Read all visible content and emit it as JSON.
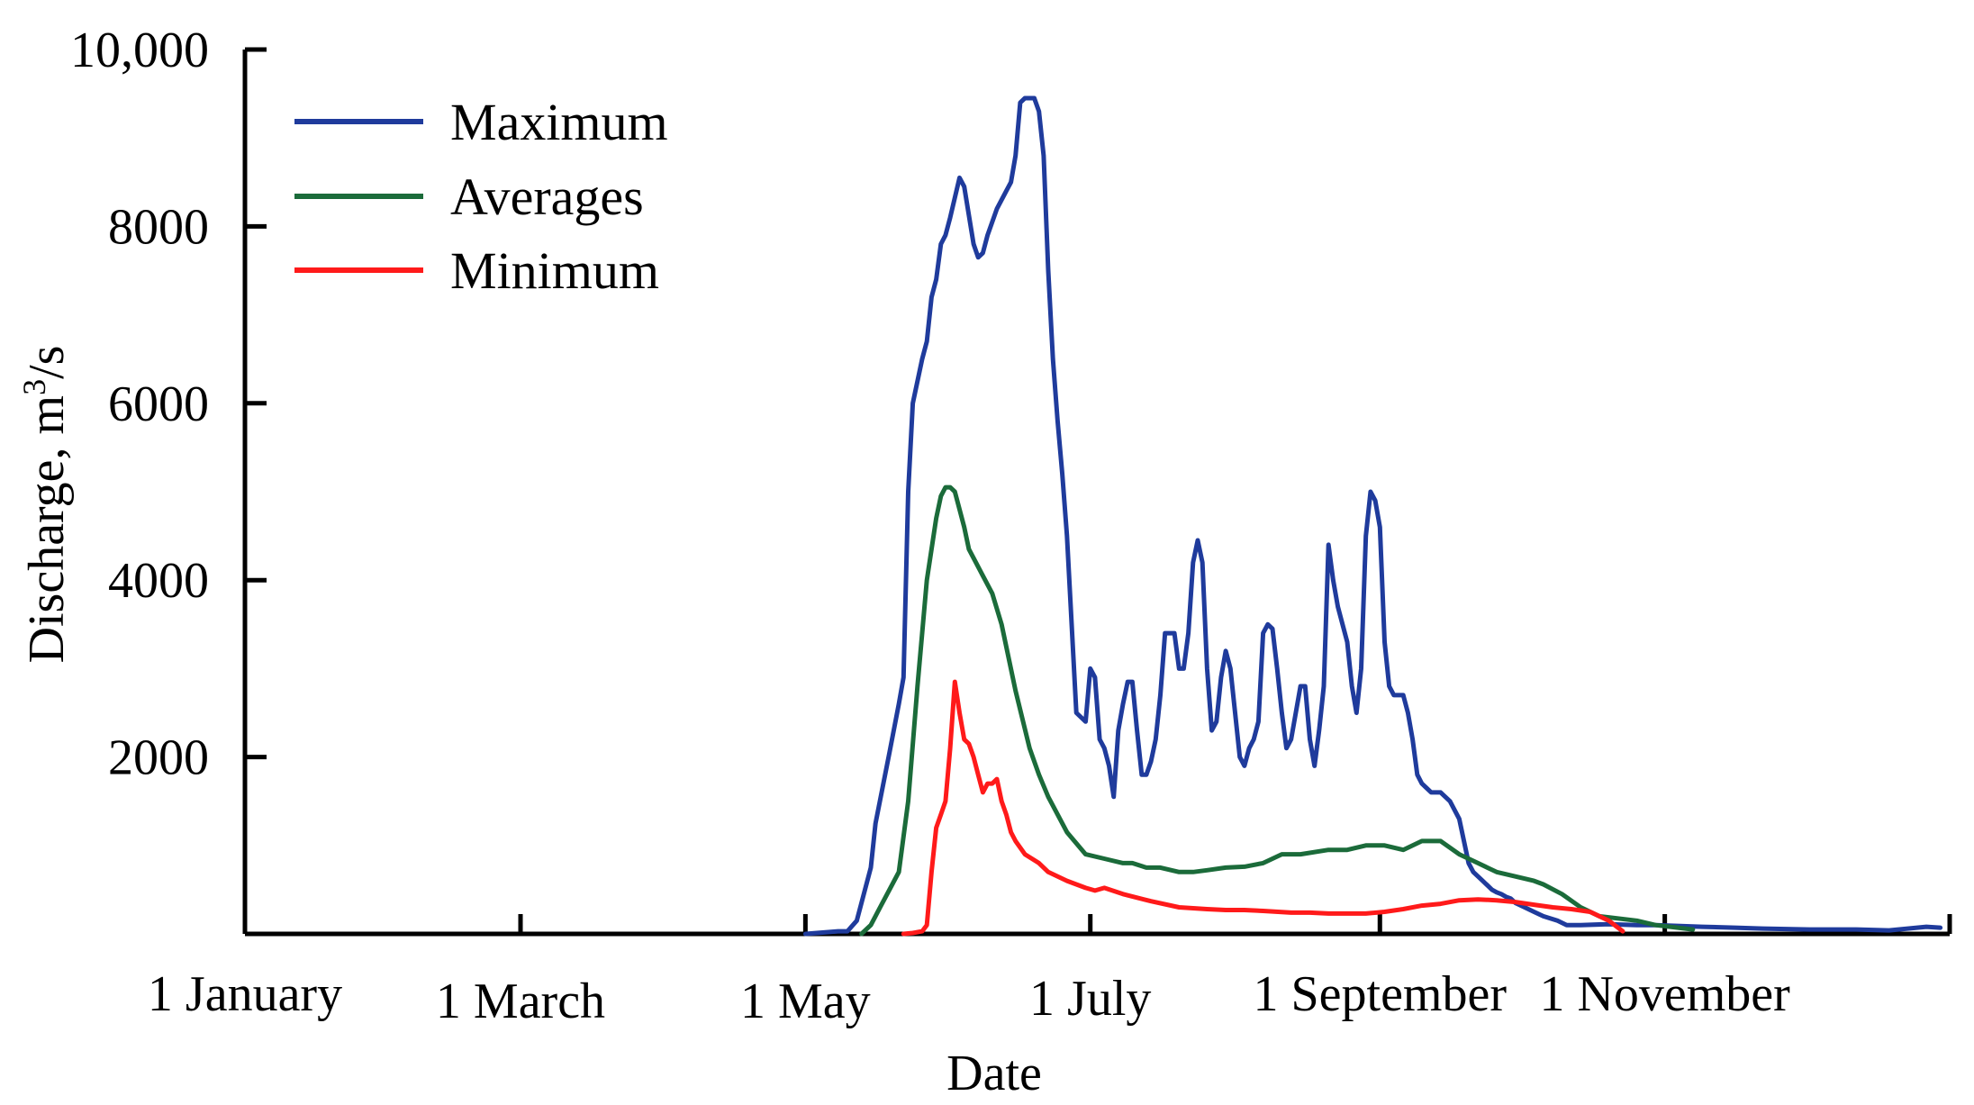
{
  "chart_data": {
    "type": "line",
    "title": "",
    "xlabel": "Date",
    "ylabel_prefix": "Discharge, m",
    "ylabel_sup": "3",
    "ylabel_suffix": "/s",
    "ylim": [
      0,
      10000
    ],
    "xlim": [
      0,
      365
    ],
    "y_ticks": [
      {
        "value": 10000,
        "label": "10,000"
      },
      {
        "value": 8000,
        "label": "8000"
      },
      {
        "value": 6000,
        "label": "6000"
      },
      {
        "value": 4000,
        "label": "4000"
      },
      {
        "value": 2000,
        "label": "2000"
      }
    ],
    "x_ticks": [
      {
        "day": 0,
        "label": "1 January"
      },
      {
        "day": 59,
        "label": "1 March"
      },
      {
        "day": 120,
        "label": "1 May"
      },
      {
        "day": 181,
        "label": "1 July"
      },
      {
        "day": 243,
        "label": "1 September"
      },
      {
        "day": 304,
        "label": "1 November"
      }
    ],
    "legend_position": "top-left",
    "series": [
      {
        "name": "Maximum",
        "color": "#1f3b9c",
        "x": [
          120,
          127,
          129,
          131,
          134,
          135,
          138,
          140,
          141,
          142,
          143,
          145,
          146,
          147,
          148,
          149,
          150,
          151,
          153,
          154,
          156,
          157,
          158,
          159,
          161,
          162,
          163,
          164,
          165,
          166,
          167,
          169,
          170,
          171,
          172,
          173,
          174,
          175,
          176,
          177,
          178,
          180,
          181,
          182,
          183,
          184,
          185,
          186,
          187,
          188,
          189,
          190,
          191,
          192,
          193,
          194,
          195,
          196,
          197,
          199,
          200,
          201,
          202,
          203,
          204,
          205,
          206,
          207,
          208,
          209,
          210,
          211,
          212,
          213,
          214,
          215,
          216,
          217,
          218,
          219,
          220,
          221,
          222,
          223,
          224,
          225,
          226,
          227,
          228,
          229,
          230,
          231,
          232,
          233,
          234,
          235,
          236,
          237,
          238,
          239,
          240,
          241,
          242,
          243,
          244,
          245,
          246,
          248,
          249,
          250,
          251,
          252,
          253,
          254,
          255,
          256,
          257,
          258,
          260,
          262,
          263,
          264,
          265,
          266,
          267,
          268,
          269,
          270,
          271,
          272,
          274,
          276,
          278,
          281,
          283,
          286,
          292,
          298,
          302,
          312,
          319,
          325,
          335,
          345,
          352,
          360,
          363
        ],
        "y": [
          0,
          30,
          30,
          150,
          750,
          1250,
          2050,
          2600,
          2900,
          5000,
          6000,
          6500,
          6700,
          7200,
          7400,
          7800,
          7900,
          8100,
          8550,
          8450,
          7800,
          7650,
          7700,
          7900,
          8200,
          8300,
          8400,
          8500,
          8800,
          9400,
          9450,
          9450,
          9300,
          8800,
          7500,
          6500,
          5800,
          5200,
          4500,
          3500,
          2500,
          2400,
          3000,
          2900,
          2200,
          2100,
          1900,
          1550,
          2300,
          2600,
          2850,
          2850,
          2300,
          1800,
          1800,
          1950,
          2200,
          2700,
          3400,
          3400,
          3000,
          3000,
          3400,
          4200,
          4450,
          4200,
          3000,
          2300,
          2400,
          2900,
          3200,
          3000,
          2500,
          2000,
          1900,
          2100,
          2200,
          2400,
          3400,
          3500,
          3450,
          3000,
          2500,
          2100,
          2200,
          2500,
          2800,
          2800,
          2200,
          1900,
          2300,
          2800,
          4400,
          4000,
          3700,
          3500,
          3300,
          2800,
          2500,
          3000,
          4500,
          5000,
          4900,
          4600,
          3300,
          2800,
          2700,
          2700,
          2500,
          2200,
          1800,
          1700,
          1650,
          1600,
          1600,
          1600,
          1550,
          1500,
          1300,
          800,
          700,
          650,
          600,
          550,
          500,
          470,
          450,
          420,
          400,
          350,
          300,
          250,
          200,
          150,
          100,
          100,
          110,
          100,
          100,
          80,
          70,
          60,
          50,
          50,
          40,
          80,
          70
        ],
        "y_prev": []
      },
      {
        "name": "Averages",
        "color": "#1b6b3a",
        "x": [
          132,
          134,
          136,
          138,
          140,
          142,
          144,
          146,
          148,
          149,
          150,
          151,
          152,
          153,
          154,
          155,
          156,
          158,
          160,
          162,
          165,
          168,
          170,
          172,
          174,
          176,
          180,
          184,
          188,
          190,
          193,
          196,
          200,
          203,
          206,
          210,
          214,
          218,
          222,
          226,
          232,
          236,
          240,
          244,
          248,
          252,
          256,
          260,
          264,
          268,
          272,
          276,
          278,
          282,
          286,
          290,
          298,
          302,
          310
        ],
        "y": [
          0,
          100,
          300,
          500,
          700,
          1500,
          2800,
          4000,
          4700,
          4950,
          5050,
          5050,
          5000,
          4800,
          4600,
          4350,
          4250,
          4050,
          3850,
          3500,
          2750,
          2100,
          1800,
          1550,
          1350,
          1150,
          900,
          850,
          800,
          800,
          750,
          750,
          700,
          700,
          720,
          750,
          760,
          800,
          900,
          900,
          950,
          950,
          1000,
          1000,
          950,
          1050,
          1050,
          900,
          800,
          700,
          650,
          600,
          560,
          450,
          300,
          200,
          150,
          100,
          50
        ],
        "y_prev": []
      },
      {
        "name": "Minimum",
        "color": "#ff1a1a",
        "x": [
          141,
          143,
          145,
          146,
          147,
          148,
          149,
          150,
          151,
          152,
          153,
          154,
          155,
          156,
          157,
          158,
          159,
          160,
          161,
          162,
          163,
          164,
          165,
          167,
          170,
          172,
          176,
          180,
          182,
          184,
          188,
          194,
          200,
          206,
          210,
          214,
          218,
          224,
          228,
          232,
          236,
          240,
          244,
          248,
          252,
          256,
          260,
          264,
          268,
          272,
          276,
          280,
          284,
          288,
          292,
          295
        ],
        "y": [
          0,
          10,
          30,
          100,
          700,
          1200,
          1350,
          1500,
          2100,
          2850,
          2500,
          2200,
          2150,
          2000,
          1800,
          1600,
          1700,
          1700,
          1750,
          1500,
          1350,
          1150,
          1050,
          900,
          800,
          700,
          600,
          520,
          490,
          520,
          450,
          370,
          300,
          280,
          270,
          270,
          260,
          240,
          240,
          230,
          230,
          230,
          250,
          280,
          320,
          340,
          380,
          390,
          380,
          360,
          330,
          300,
          280,
          250,
          150,
          30
        ],
        "y_prev": []
      }
    ]
  }
}
